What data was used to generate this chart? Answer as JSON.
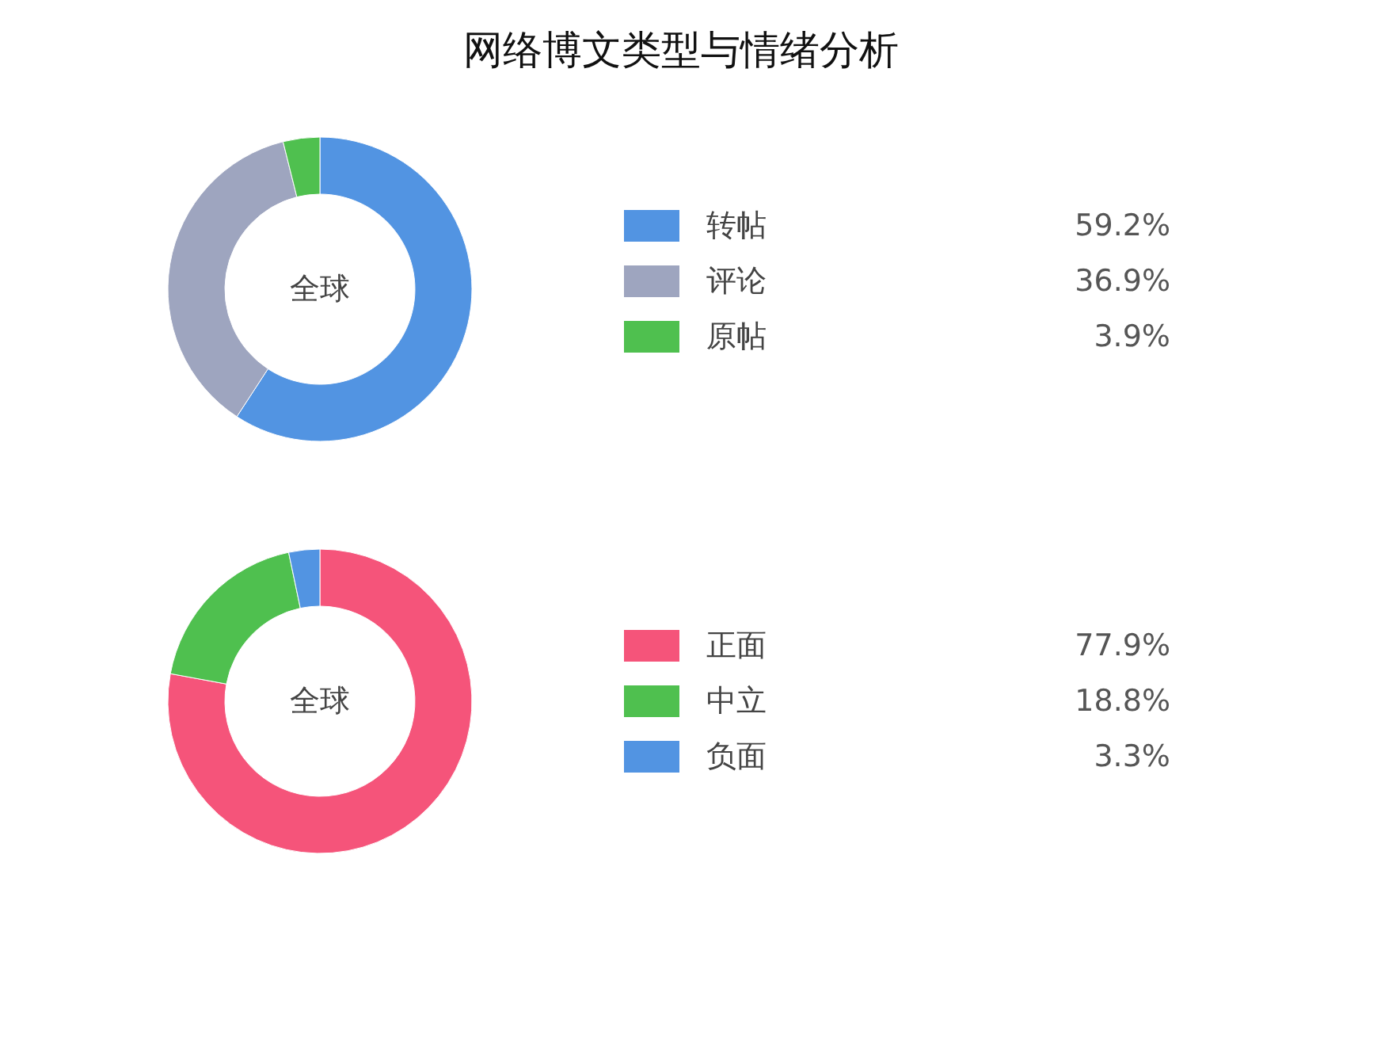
{
  "chart_data": [
    {
      "type": "donut",
      "title": "网络博文类型与情绪分析",
      "categories": [
        "转帖",
        "评论",
        "原帖"
      ],
      "values": [
        59.2,
        36.9,
        3.9
      ],
      "colors": [
        "#5294e2",
        "#9ea5bf",
        "#4fc04f"
      ],
      "value_labels": [
        "59.2%",
        "36.9%",
        "3.9%"
      ],
      "annotations": [
        "全球"
      ],
      "legend": "right"
    },
    {
      "type": "donut",
      "categories": [
        "正面",
        "中立",
        "负面"
      ],
      "values": [
        77.9,
        18.8,
        3.3
      ],
      "colors": [
        "#f5547a",
        "#4fc04f",
        "#5294e2"
      ],
      "value_labels": [
        "77.9%",
        "18.8%",
        "3.3%"
      ],
      "annotations": [
        "全球"
      ],
      "legend": "right"
    }
  ]
}
